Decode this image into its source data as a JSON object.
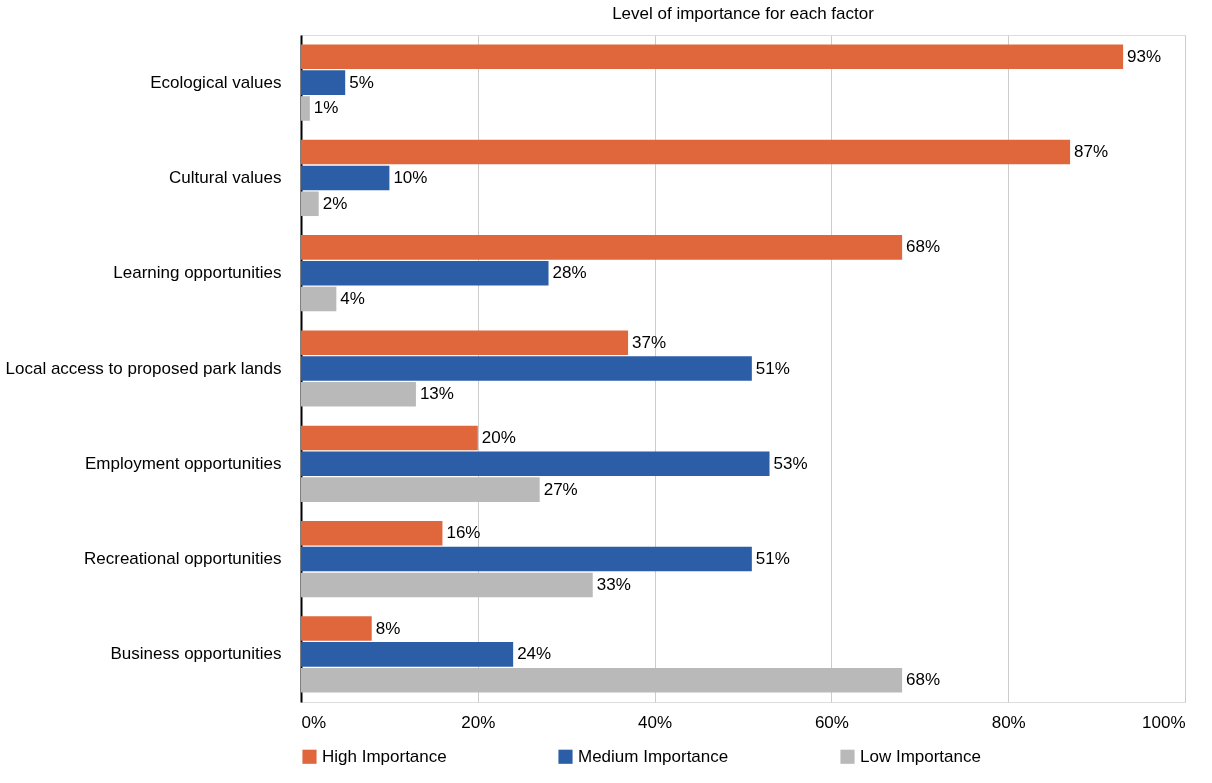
{
  "chart_data": {
    "type": "bar",
    "orientation": "horizontal",
    "title": "Level of importance for each factor",
    "categories": [
      "Ecological values",
      "Cultural values",
      "Learning opportunities",
      "Local access to proposed park lands",
      "Employment opportunities",
      "Recreational opportunities",
      "Business opportunities"
    ],
    "series": [
      {
        "name": "High Importance",
        "color": "#e0673c",
        "values": [
          93,
          87,
          68,
          37,
          20,
          16,
          8
        ],
        "value_labels": [
          "93%",
          "87%",
          "68%",
          "37%",
          "20%",
          "16%",
          "8%"
        ]
      },
      {
        "name": "Medium Importance",
        "color": "#2b5ea6",
        "values": [
          5,
          10,
          28,
          51,
          53,
          51,
          24
        ],
        "value_labels": [
          "5%",
          "10%",
          "28%",
          "51%",
          "53%",
          "51%",
          "24%"
        ]
      },
      {
        "name": "Low Importance",
        "color": "#b9b9b9",
        "values": [
          1,
          2,
          4,
          13,
          27,
          33,
          68
        ],
        "value_labels": [
          "1%",
          "2%",
          "4%",
          "13%",
          "27%",
          "33%",
          "68%"
        ]
      }
    ],
    "xlim": [
      0,
      100
    ],
    "xticks": [
      {
        "value": 0,
        "label": "0%"
      },
      {
        "value": 20,
        "label": "20%"
      },
      {
        "value": 40,
        "label": "40%"
      },
      {
        "value": 60,
        "label": "60%"
      },
      {
        "value": 80,
        "label": "80%"
      },
      {
        "value": 100,
        "label": "100%"
      }
    ],
    "grid": "x",
    "legend": "bottom"
  }
}
